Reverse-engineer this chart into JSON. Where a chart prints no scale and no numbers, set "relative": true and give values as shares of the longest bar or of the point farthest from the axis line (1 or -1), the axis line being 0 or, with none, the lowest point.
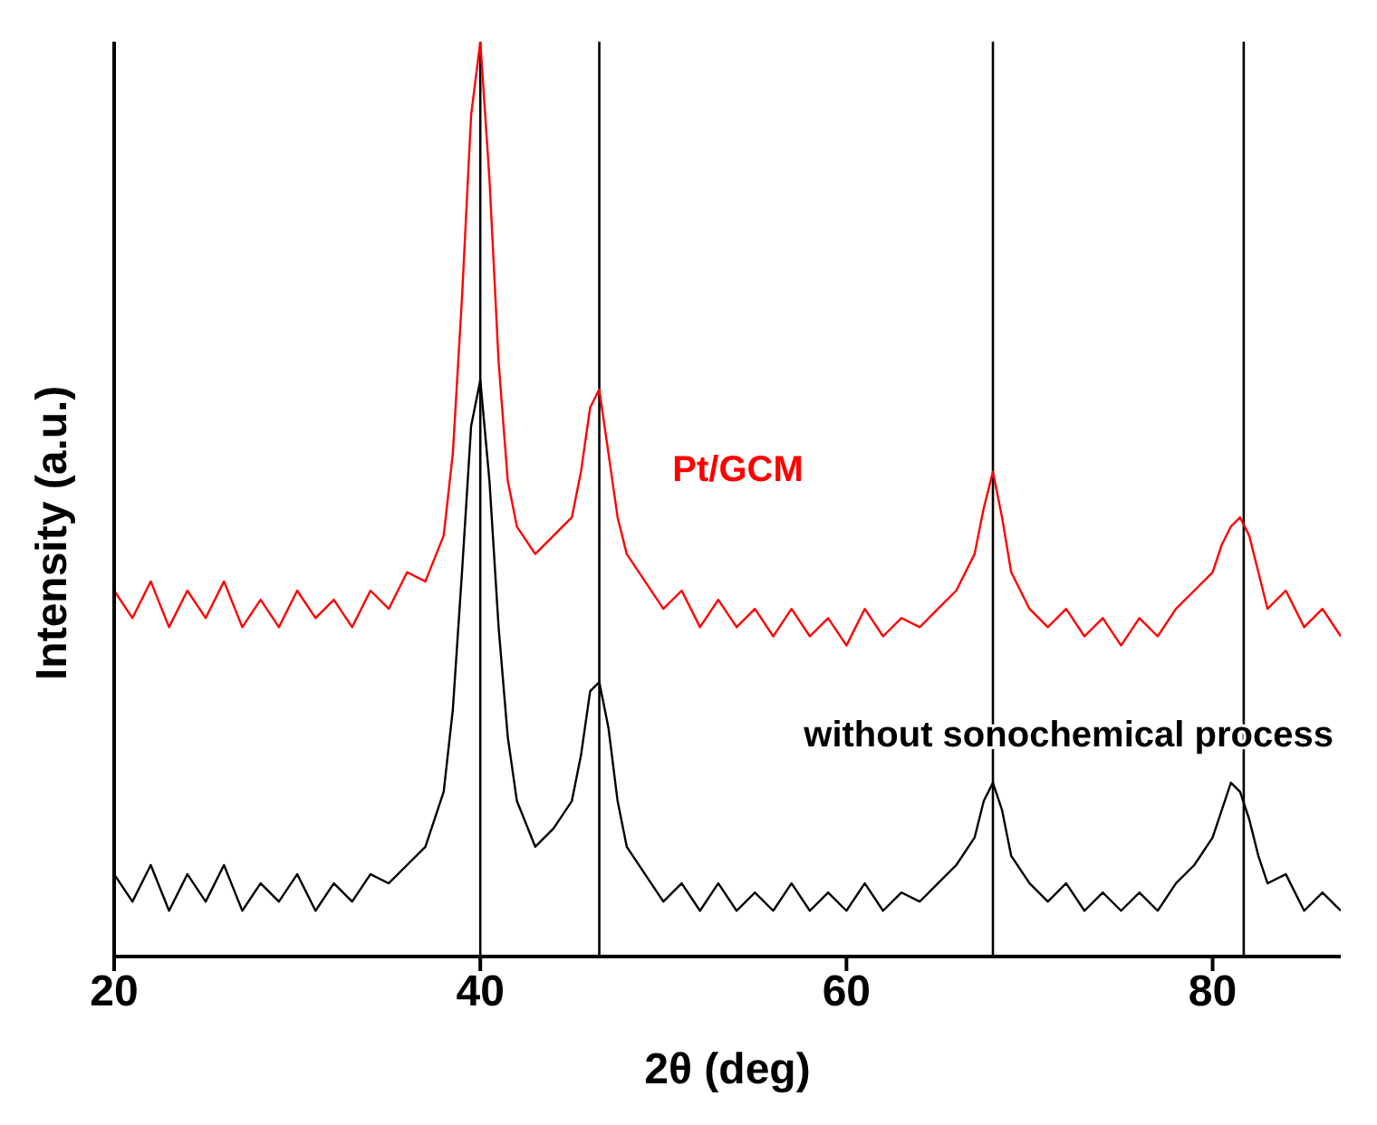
{
  "chart_data": {
    "type": "line",
    "relative": true,
    "xlabel": "2θ (deg)",
    "ylabel": "Intensity (a.u.)",
    "xlim": [
      20,
      87
    ],
    "xticks": [
      20,
      40,
      60,
      80
    ],
    "legend": false,
    "x": [
      20,
      21,
      22,
      23,
      24,
      25,
      26,
      27,
      28,
      29,
      30,
      31,
      32,
      33,
      34,
      35,
      36,
      37,
      38,
      38.5,
      39,
      39.5,
      40,
      40.5,
      41,
      41.5,
      42,
      43,
      44,
      45,
      45.5,
      46,
      46.5,
      47,
      47.5,
      48,
      49,
      50,
      51,
      52,
      53,
      54,
      55,
      56,
      57,
      58,
      59,
      60,
      61,
      62,
      63,
      64,
      65,
      66,
      67,
      67.5,
      68,
      68.5,
      69,
      70,
      71,
      72,
      73,
      74,
      75,
      76,
      77,
      78,
      79,
      80,
      80.5,
      81,
      81.5,
      82,
      82.5,
      83,
      84,
      85,
      86,
      87
    ],
    "series": [
      {
        "name": "Pt/GCM",
        "color": "#ff0000",
        "values": [
          0.4,
          0.37,
          0.41,
          0.36,
          0.4,
          0.37,
          0.41,
          0.36,
          0.39,
          0.36,
          0.4,
          0.37,
          0.39,
          0.36,
          0.4,
          0.38,
          0.42,
          0.41,
          0.46,
          0.55,
          0.72,
          0.92,
          1.0,
          0.85,
          0.65,
          0.52,
          0.47,
          0.44,
          0.46,
          0.48,
          0.53,
          0.6,
          0.62,
          0.55,
          0.48,
          0.44,
          0.41,
          0.38,
          0.4,
          0.36,
          0.39,
          0.36,
          0.38,
          0.35,
          0.38,
          0.35,
          0.37,
          0.34,
          0.38,
          0.35,
          0.37,
          0.36,
          0.38,
          0.4,
          0.44,
          0.49,
          0.53,
          0.48,
          0.42,
          0.38,
          0.36,
          0.38,
          0.35,
          0.37,
          0.34,
          0.37,
          0.35,
          0.38,
          0.4,
          0.42,
          0.45,
          0.47,
          0.48,
          0.46,
          0.42,
          0.38,
          0.4,
          0.36,
          0.38,
          0.35
        ]
      },
      {
        "name": "without sonochemical process",
        "color": "#000000",
        "values": [
          0.09,
          0.06,
          0.1,
          0.05,
          0.09,
          0.06,
          0.1,
          0.05,
          0.08,
          0.06,
          0.09,
          0.05,
          0.08,
          0.06,
          0.09,
          0.08,
          0.1,
          0.12,
          0.18,
          0.27,
          0.42,
          0.58,
          0.63,
          0.52,
          0.36,
          0.24,
          0.17,
          0.12,
          0.14,
          0.17,
          0.22,
          0.29,
          0.3,
          0.25,
          0.17,
          0.12,
          0.09,
          0.06,
          0.08,
          0.05,
          0.08,
          0.05,
          0.07,
          0.05,
          0.08,
          0.05,
          0.07,
          0.05,
          0.08,
          0.05,
          0.07,
          0.06,
          0.08,
          0.1,
          0.13,
          0.17,
          0.19,
          0.16,
          0.11,
          0.08,
          0.06,
          0.08,
          0.05,
          0.07,
          0.05,
          0.07,
          0.05,
          0.08,
          0.1,
          0.13,
          0.16,
          0.19,
          0.18,
          0.15,
          0.11,
          0.08,
          0.09,
          0.05,
          0.07,
          0.05
        ]
      }
    ],
    "ref_lines": [
      {
        "axis": "x",
        "value": 40,
        "color": "#000000"
      },
      {
        "axis": "x",
        "value": 46.5,
        "color": "#000000"
      },
      {
        "axis": "x",
        "value": 68,
        "color": "#000000"
      },
      {
        "axis": "x",
        "value": 81.7,
        "color": "#000000"
      }
    ]
  }
}
